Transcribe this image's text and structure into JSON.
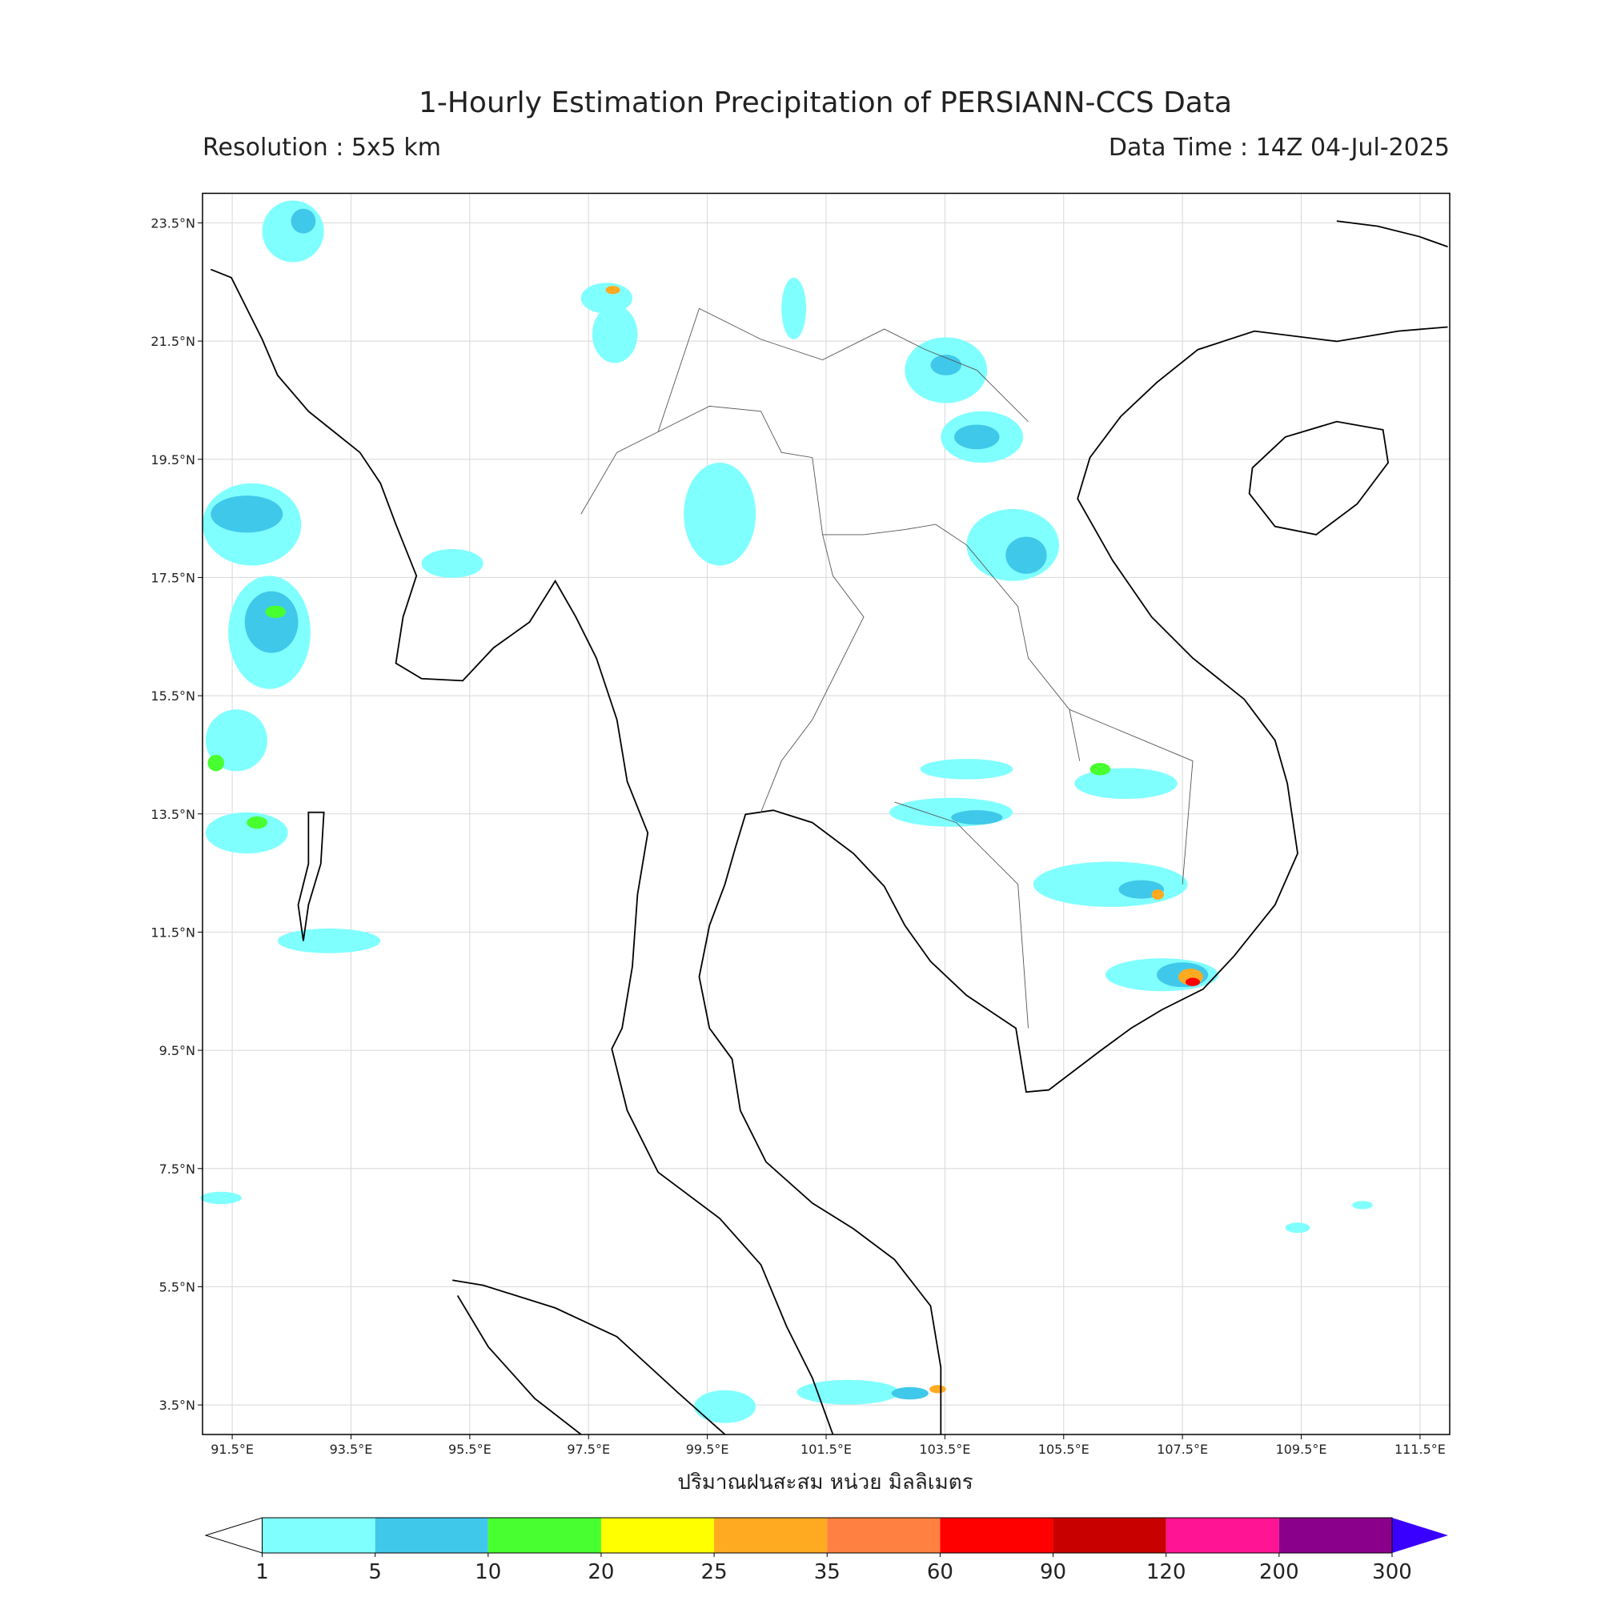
{
  "header": {
    "title": "1-Hourly Estimation Precipitation of PERSIANN-CCS Data",
    "resolution": "Resolution : 5x5 km",
    "data_time": "Data Time : 14Z 04-Jul-2025"
  },
  "map": {
    "lon_lim": [
      91,
      112
    ],
    "lat_lim": [
      3,
      24
    ],
    "lon_ticks": [
      {
        "value": 91.5,
        "label": "91.5°E"
      },
      {
        "value": 93.5,
        "label": "93.5°E"
      },
      {
        "value": 95.5,
        "label": "95.5°E"
      },
      {
        "value": 97.5,
        "label": "97.5°E"
      },
      {
        "value": 99.5,
        "label": "99.5°E"
      },
      {
        "value": 101.5,
        "label": "101.5°E"
      },
      {
        "value": 103.5,
        "label": "103.5°E"
      },
      {
        "value": 105.5,
        "label": "105.5°E"
      },
      {
        "value": 107.5,
        "label": "107.5°E"
      },
      {
        "value": 109.5,
        "label": "109.5°E"
      },
      {
        "value": 111.5,
        "label": "111.5°E"
      }
    ],
    "lat_ticks": [
      {
        "value": 23.5,
        "label": "23.5°N"
      },
      {
        "value": 21.5,
        "label": "21.5°N"
      },
      {
        "value": 19.5,
        "label": "19.5°N"
      },
      {
        "value": 17.5,
        "label": "17.5°N"
      },
      {
        "value": 15.5,
        "label": "15.5°N"
      },
      {
        "value": 13.5,
        "label": "13.5°N"
      },
      {
        "value": 11.5,
        "label": "11.5°N"
      },
      {
        "value": 9.5,
        "label": "9.5°N"
      },
      {
        "value": 7.5,
        "label": "7.5°N"
      },
      {
        "value": 5.5,
        "label": "5.5°N"
      },
      {
        "value": 3.5,
        "label": "3.5°N"
      }
    ],
    "x_label": "ปริมาณฝนสะสม หน่วย มิลลิเมตร"
  },
  "colorbar": {
    "boundaries": [
      1,
      5,
      10,
      20,
      25,
      35,
      60,
      90,
      120,
      200,
      300
    ],
    "colors": [
      "#80ffff",
      "#40c8ea",
      "#48ff30",
      "#ffff00",
      "#ffaa20",
      "#ff8040",
      "#ff0000",
      "#c80000",
      "#ff1493",
      "#8b008b"
    ],
    "under_color": "#ffffff",
    "over_color": "#3a00ff"
  }
}
